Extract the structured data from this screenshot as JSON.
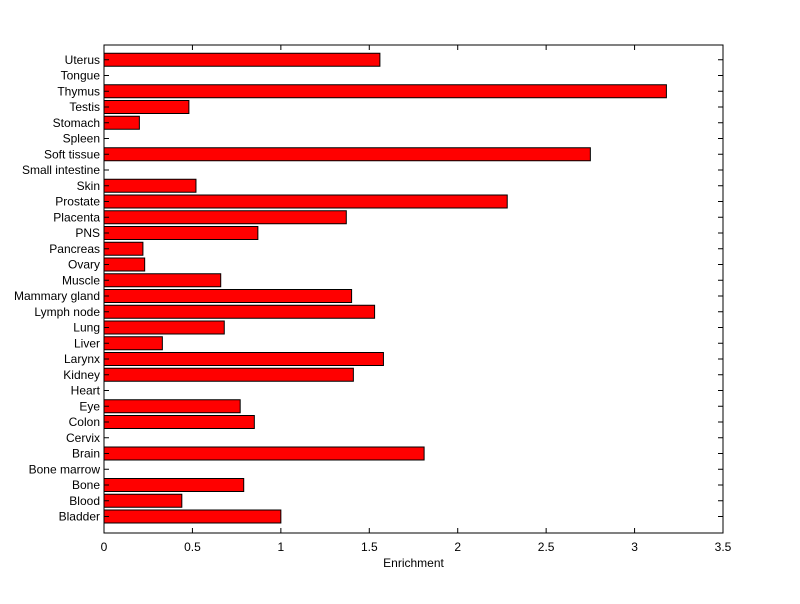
{
  "chart_data": {
    "type": "bar",
    "orientation": "horizontal",
    "title": "",
    "xlabel": "Enrichment",
    "ylabel": "",
    "xlim": [
      0,
      3.5
    ],
    "xticks": [
      "0",
      "0.5",
      "1",
      "1.5",
      "2",
      "2.5",
      "3",
      "3.5"
    ],
    "grid": false,
    "legend": "none",
    "categories": [
      "Bladder",
      "Blood",
      "Bone",
      "Bone marrow",
      "Brain",
      "Cervix",
      "Colon",
      "Eye",
      "Heart",
      "Kidney",
      "Larynx",
      "Liver",
      "Lung",
      "Lymph node",
      "Mammary gland",
      "Muscle",
      "Ovary",
      "Pancreas",
      "PNS",
      "Placenta",
      "Prostate",
      "Skin",
      "Small intestine",
      "Soft tissue",
      "Spleen",
      "Stomach",
      "Testis",
      "Thymus",
      "Tongue",
      "Uterus"
    ],
    "values": [
      1.0,
      0.44,
      0.79,
      0,
      1.81,
      0,
      0.85,
      0.77,
      0,
      1.41,
      1.58,
      0.33,
      0.68,
      1.53,
      1.4,
      0.66,
      0.23,
      0.22,
      0.87,
      1.37,
      2.28,
      0.52,
      0,
      2.75,
      0,
      0.2,
      0.48,
      3.18,
      0,
      1.56
    ],
    "colors": {
      "bar_fill": "#ff0000",
      "bar_stroke": "#000000",
      "axes": "#000000",
      "background": "#ffffff"
    }
  }
}
